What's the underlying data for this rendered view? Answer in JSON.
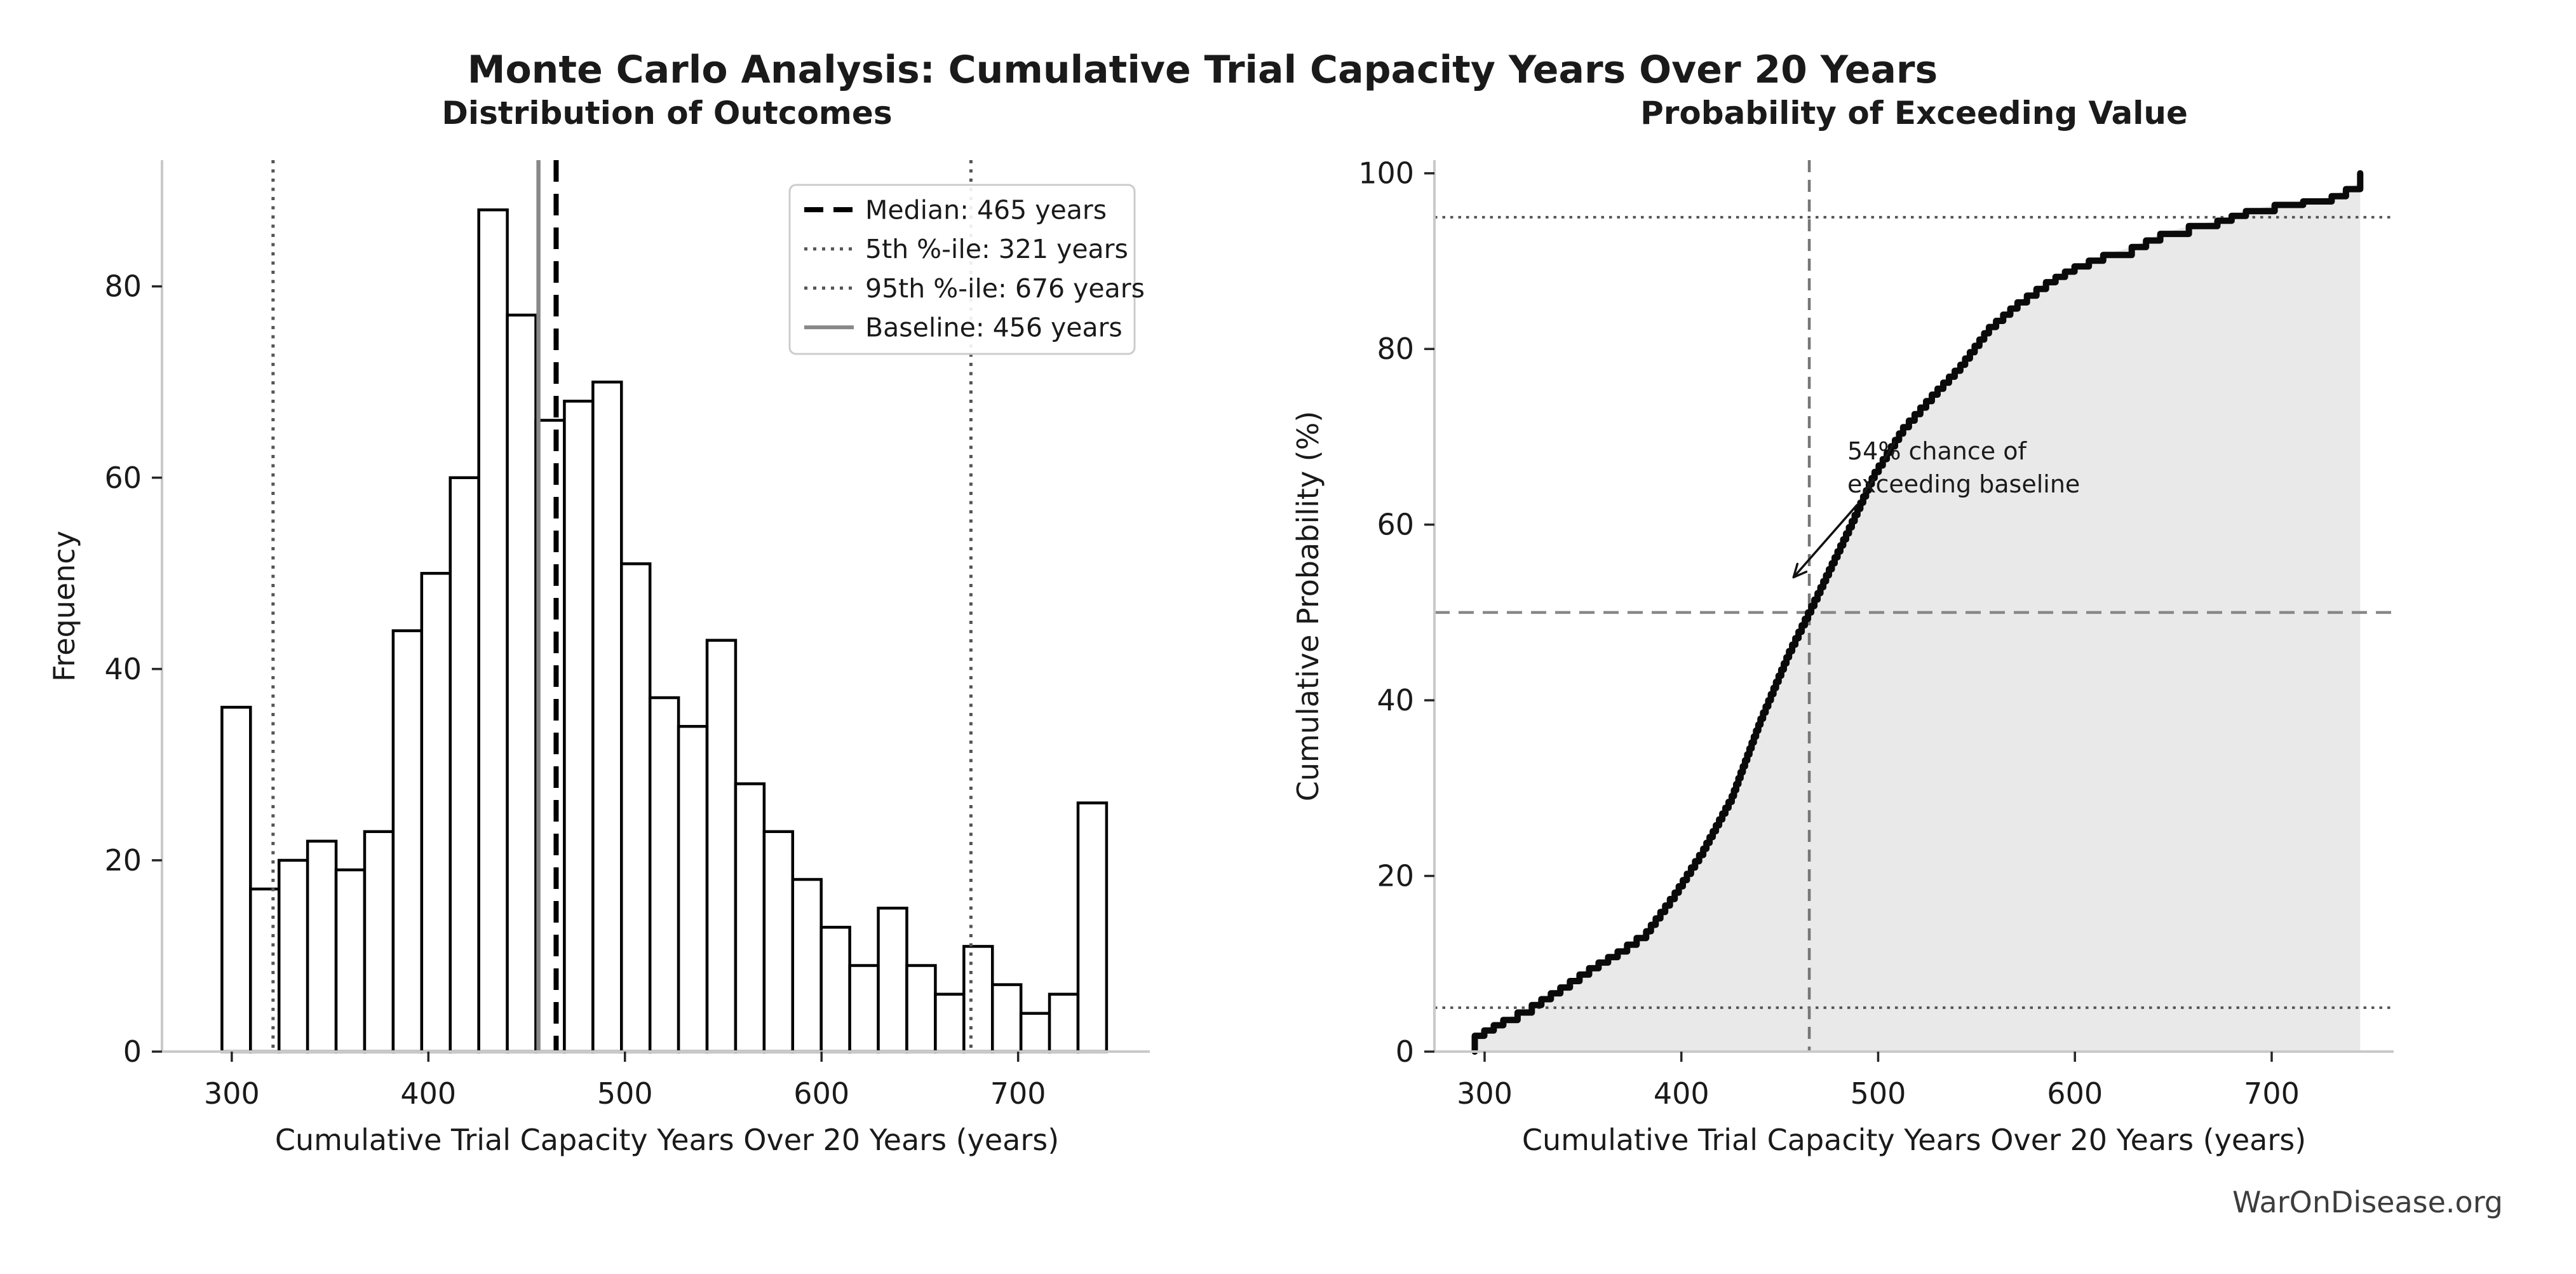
{
  "title": "Monte Carlo Analysis: Cumulative Trial Capacity Years Over 20 Years",
  "watermark": "WarOnDisease.org",
  "colors": {
    "spine": "#c9c9c9",
    "tick_mark": "#262626",
    "text": "#1a1a1a",
    "bar_fill": "#ffffff",
    "bar_edge": "#000000",
    "median_line": "#000000",
    "percentile_line": "#555555",
    "baseline_line": "#888888",
    "cdf_line": "#0a0a0a",
    "cdf_fill": "#e9e9e9",
    "half_dashed": "#888888",
    "v_dashed": "#777777",
    "legend_border": "#cccccc",
    "watermark": "#3d3d3d"
  },
  "chart_data": [
    {
      "type": "bar",
      "subtype": "histogram",
      "title": "Distribution of Outcomes",
      "xlabel": "Cumulative Trial Capacity Years Over 20 Years (years)",
      "ylabel": "Frequency",
      "x_ticks": [
        300,
        400,
        500,
        600,
        700
      ],
      "y_ticks": [
        0,
        20,
        40,
        60,
        80
      ],
      "xlim": [
        264.5,
        767
      ],
      "ylim": [
        0,
        93.2
      ],
      "grid": false,
      "total_simulations": 1000,
      "bin_start": 295,
      "bin_width": 14.516,
      "frequencies": [
        36,
        17,
        20,
        22,
        19,
        23,
        44,
        50,
        60,
        88,
        77,
        66,
        68,
        70,
        51,
        37,
        34,
        43,
        28,
        23,
        18,
        13,
        9,
        15,
        9,
        6,
        11,
        7,
        4,
        6,
        26
      ],
      "legend_position": "upper right",
      "legend": [
        {
          "label": "Median: 465 years",
          "x": 465,
          "style": "dashed",
          "color": "#000000"
        },
        {
          "label": "5th %-ile: 321 years",
          "x": 321,
          "style": "dotted",
          "color": "#555555"
        },
        {
          "label": "95th %-ile: 676 years",
          "x": 676,
          "style": "dotted",
          "color": "#555555"
        },
        {
          "label": "Baseline: 456 years",
          "x": 456,
          "style": "solid",
          "color": "#888888"
        }
      ]
    },
    {
      "type": "line",
      "subtype": "ecdf",
      "title": "Probability of Exceeding Value",
      "xlabel": "Cumulative Trial Capacity Years Over 20 Years (years)",
      "ylabel": "Cumulative Probability (%)",
      "x_ticks": [
        300,
        400,
        500,
        600,
        700
      ],
      "y_ticks": [
        0,
        20,
        40,
        60,
        80,
        100
      ],
      "xlim": [
        274.5,
        762
      ],
      "ylim": [
        0,
        101.5
      ],
      "grid": false,
      "fill": true,
      "points": [
        [
          295,
          0
        ],
        [
          295,
          1.8
        ],
        [
          309.5,
          3.6
        ],
        [
          324,
          5.3
        ],
        [
          338.5,
          7.3
        ],
        [
          353.1,
          9.5
        ],
        [
          367.6,
          11.4
        ],
        [
          382.1,
          13.7
        ],
        [
          396.6,
          18.1
        ],
        [
          411.1,
          23.1
        ],
        [
          425.6,
          29.1
        ],
        [
          440.2,
          37.9
        ],
        [
          454.7,
          45.6
        ],
        [
          469.2,
          52.2
        ],
        [
          483.7,
          59.0
        ],
        [
          498.2,
          66.0
        ],
        [
          512.7,
          71.1
        ],
        [
          527.3,
          74.8
        ],
        [
          541.8,
          78.2
        ],
        [
          556.3,
          82.5
        ],
        [
          570.8,
          85.3
        ],
        [
          585.3,
          87.6
        ],
        [
          599.8,
          89.4
        ],
        [
          614.4,
          90.7
        ],
        [
          628.9,
          91.6
        ],
        [
          643.4,
          93.1
        ],
        [
          657.9,
          94.0
        ],
        [
          672.4,
          94.6
        ],
        [
          686.9,
          95.7
        ],
        [
          701.5,
          96.4
        ],
        [
          716,
          96.8
        ],
        [
          730.5,
          97.4
        ],
        [
          745,
          99.0
        ],
        [
          745,
          100
        ]
      ],
      "h_dotted": [
        5,
        95
      ],
      "h_dashed": [
        50
      ],
      "v_dashed": [
        465
      ],
      "annotation": {
        "line1": "54% chance of",
        "line2": "exceeding baseline",
        "xy": [
          457,
          54
        ],
        "xytext": [
          489.5,
          62.3
        ]
      }
    }
  ]
}
